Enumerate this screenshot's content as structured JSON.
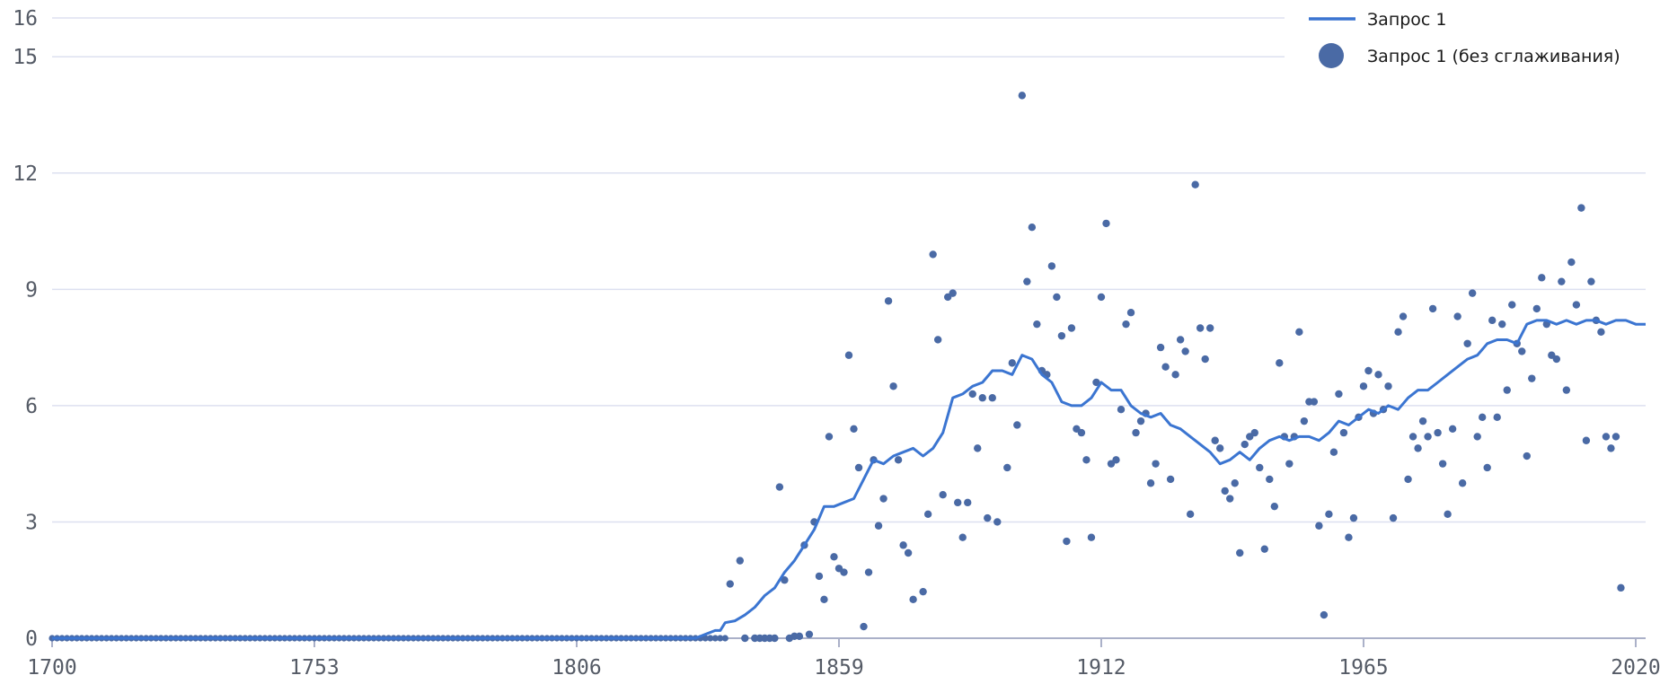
{
  "chart_data": {
    "type": "line",
    "title": "",
    "xlabel": "",
    "ylabel": "",
    "xlim": [
      1700,
      2022
    ],
    "ylim": [
      0,
      16
    ],
    "x_ticks": [
      1700,
      1753,
      1806,
      1859,
      1912,
      1965,
      2020
    ],
    "y_ticks": [
      0,
      3,
      6,
      9,
      12,
      15,
      16
    ],
    "grid": true,
    "legend_position": "top-right",
    "colors": {
      "smoothed": "#3b75d1",
      "raw": "#4a6aa5",
      "grid": "#dde0f0",
      "axis": "#aab0c8"
    },
    "series": [
      {
        "name": "Запрос 1",
        "style": "line",
        "x": [
          1700,
          1800,
          1830,
          1832,
          1834,
          1835,
          1836,
          1838,
          1840,
          1842,
          1844,
          1846,
          1848,
          1850,
          1852,
          1854,
          1856,
          1858,
          1860,
          1862,
          1864,
          1866,
          1868,
          1870,
          1872,
          1874,
          1876,
          1878,
          1880,
          1882,
          1884,
          1886,
          1888,
          1890,
          1892,
          1894,
          1896,
          1898,
          1900,
          1902,
          1904,
          1906,
          1908,
          1910,
          1912,
          1914,
          1916,
          1918,
          1920,
          1922,
          1924,
          1926,
          1928,
          1930,
          1932,
          1934,
          1936,
          1938,
          1940,
          1942,
          1944,
          1946,
          1948,
          1950,
          1952,
          1954,
          1956,
          1958,
          1960,
          1962,
          1964,
          1966,
          1968,
          1970,
          1972,
          1974,
          1976,
          1978,
          1980,
          1982,
          1984,
          1986,
          1988,
          1990,
          1992,
          1994,
          1996,
          1998,
          2000,
          2002,
          2004,
          2006,
          2008,
          2010,
          2012,
          2014,
          2016,
          2018,
          2020,
          2022
        ],
        "values": [
          0,
          0,
          0,
          0.1,
          0.2,
          0.2,
          0.4,
          0.45,
          0.6,
          0.8,
          1.1,
          1.3,
          1.7,
          2.0,
          2.4,
          2.8,
          3.4,
          3.4,
          3.5,
          3.6,
          4.1,
          4.6,
          4.5,
          4.7,
          4.8,
          4.9,
          4.7,
          4.9,
          5.3,
          6.2,
          6.3,
          6.5,
          6.6,
          6.9,
          6.9,
          6.8,
          7.3,
          7.2,
          6.8,
          6.6,
          6.1,
          6.0,
          6.0,
          6.2,
          6.6,
          6.4,
          6.4,
          6.0,
          5.8,
          5.7,
          5.8,
          5.5,
          5.4,
          5.2,
          5.0,
          4.8,
          4.5,
          4.6,
          4.8,
          4.6,
          4.9,
          5.1,
          5.2,
          5.1,
          5.2,
          5.2,
          5.1,
          5.3,
          5.6,
          5.5,
          5.7,
          5.9,
          5.8,
          6.0,
          5.9,
          6.2,
          6.4,
          6.4,
          6.6,
          6.8,
          7.0,
          7.2,
          7.3,
          7.6,
          7.7,
          7.7,
          7.6,
          8.1,
          8.2,
          8.2,
          8.1,
          8.2,
          8.1,
          8.2,
          8.2,
          8.1,
          8.2,
          8.2,
          8.1,
          8.1
        ]
      },
      {
        "name": "Запрос 1 (без сглаживания)",
        "style": "scatter",
        "points": [
          [
            1837,
            1.4
          ],
          [
            1839,
            2.0
          ],
          [
            1840,
            0
          ],
          [
            1842,
            0
          ],
          [
            1843,
            0
          ],
          [
            1844,
            0
          ],
          [
            1845,
            0
          ],
          [
            1846,
            0
          ],
          [
            1847,
            3.9
          ],
          [
            1848,
            1.5
          ],
          [
            1849,
            0
          ],
          [
            1850,
            0.05
          ],
          [
            1851,
            0.05
          ],
          [
            1852,
            2.4
          ],
          [
            1853,
            0.1
          ],
          [
            1854,
            3.0
          ],
          [
            1855,
            1.6
          ],
          [
            1856,
            1.0
          ],
          [
            1857,
            5.2
          ],
          [
            1858,
            2.1
          ],
          [
            1859,
            1.8
          ],
          [
            1860,
            1.7
          ],
          [
            1861,
            7.3
          ],
          [
            1862,
            5.4
          ],
          [
            1863,
            4.4
          ],
          [
            1864,
            0.3
          ],
          [
            1865,
            1.7
          ],
          [
            1866,
            4.6
          ],
          [
            1867,
            2.9
          ],
          [
            1868,
            3.6
          ],
          [
            1869,
            8.7
          ],
          [
            1870,
            6.5
          ],
          [
            1871,
            4.6
          ],
          [
            1872,
            2.4
          ],
          [
            1873,
            2.2
          ],
          [
            1874,
            1.0
          ],
          [
            1876,
            1.2
          ],
          [
            1877,
            3.2
          ],
          [
            1878,
            9.9
          ],
          [
            1879,
            7.7
          ],
          [
            1880,
            3.7
          ],
          [
            1881,
            8.8
          ],
          [
            1882,
            8.9
          ],
          [
            1883,
            3.5
          ],
          [
            1884,
            2.6
          ],
          [
            1885,
            3.5
          ],
          [
            1886,
            6.3
          ],
          [
            1887,
            4.9
          ],
          [
            1888,
            6.2
          ],
          [
            1889,
            3.1
          ],
          [
            1890,
            6.2
          ],
          [
            1891,
            3.0
          ],
          [
            1893,
            4.4
          ],
          [
            1894,
            7.1
          ],
          [
            1895,
            5.5
          ],
          [
            1896,
            14.0
          ],
          [
            1897,
            9.2
          ],
          [
            1898,
            10.6
          ],
          [
            1899,
            8.1
          ],
          [
            1900,
            6.9
          ],
          [
            1901,
            6.8
          ],
          [
            1902,
            9.6
          ],
          [
            1903,
            8.8
          ],
          [
            1904,
            7.8
          ],
          [
            1905,
            2.5
          ],
          [
            1906,
            8.0
          ],
          [
            1907,
            5.4
          ],
          [
            1908,
            5.3
          ],
          [
            1909,
            4.6
          ],
          [
            1910,
            2.6
          ],
          [
            1911,
            6.6
          ],
          [
            1912,
            8.8
          ],
          [
            1913,
            10.7
          ],
          [
            1914,
            4.5
          ],
          [
            1915,
            4.6
          ],
          [
            1916,
            5.9
          ],
          [
            1917,
            8.1
          ],
          [
            1918,
            8.4
          ],
          [
            1919,
            5.3
          ],
          [
            1920,
            5.6
          ],
          [
            1921,
            5.8
          ],
          [
            1922,
            4.0
          ],
          [
            1923,
            4.5
          ],
          [
            1924,
            7.5
          ],
          [
            1925,
            7.0
          ],
          [
            1926,
            4.1
          ],
          [
            1927,
            6.8
          ],
          [
            1928,
            7.7
          ],
          [
            1929,
            7.4
          ],
          [
            1930,
            3.2
          ],
          [
            1931,
            11.7
          ],
          [
            1932,
            8.0
          ],
          [
            1933,
            7.2
          ],
          [
            1934,
            8.0
          ],
          [
            1935,
            5.1
          ],
          [
            1936,
            4.9
          ],
          [
            1937,
            3.8
          ],
          [
            1938,
            3.6
          ],
          [
            1939,
            4.0
          ],
          [
            1940,
            2.2
          ],
          [
            1941,
            5.0
          ],
          [
            1942,
            5.2
          ],
          [
            1943,
            5.3
          ],
          [
            1944,
            4.4
          ],
          [
            1945,
            2.3
          ],
          [
            1946,
            4.1
          ],
          [
            1947,
            3.4
          ],
          [
            1948,
            7.1
          ],
          [
            1949,
            5.2
          ],
          [
            1950,
            4.5
          ],
          [
            1951,
            5.2
          ],
          [
            1952,
            7.9
          ],
          [
            1953,
            5.6
          ],
          [
            1954,
            6.1
          ],
          [
            1955,
            6.1
          ],
          [
            1956,
            2.9
          ],
          [
            1957,
            0.6
          ],
          [
            1958,
            3.2
          ],
          [
            1959,
            4.8
          ],
          [
            1960,
            6.3
          ],
          [
            1961,
            5.3
          ],
          [
            1962,
            2.6
          ],
          [
            1963,
            3.1
          ],
          [
            1964,
            5.7
          ],
          [
            1965,
            6.5
          ],
          [
            1966,
            6.9
          ],
          [
            1967,
            5.8
          ],
          [
            1968,
            6.8
          ],
          [
            1969,
            5.9
          ],
          [
            1970,
            6.5
          ],
          [
            1971,
            3.1
          ],
          [
            1972,
            7.9
          ],
          [
            1973,
            8.3
          ],
          [
            1974,
            4.1
          ],
          [
            1975,
            5.2
          ],
          [
            1976,
            4.9
          ],
          [
            1977,
            5.6
          ],
          [
            1978,
            5.2
          ],
          [
            1979,
            8.5
          ],
          [
            1980,
            5.3
          ],
          [
            1981,
            4.5
          ],
          [
            1982,
            3.2
          ],
          [
            1983,
            5.4
          ],
          [
            1984,
            8.3
          ],
          [
            1985,
            4.0
          ],
          [
            1986,
            7.6
          ],
          [
            1987,
            8.9
          ],
          [
            1988,
            5.2
          ],
          [
            1989,
            5.7
          ],
          [
            1990,
            4.4
          ],
          [
            1991,
            8.2
          ],
          [
            1992,
            5.7
          ],
          [
            1993,
            8.1
          ],
          [
            1994,
            6.4
          ],
          [
            1995,
            8.6
          ],
          [
            1996,
            7.6
          ],
          [
            1997,
            7.4
          ],
          [
            1998,
            4.7
          ],
          [
            1999,
            6.7
          ],
          [
            2000,
            8.5
          ],
          [
            2001,
            9.3
          ],
          [
            2002,
            8.1
          ],
          [
            2003,
            7.3
          ],
          [
            2004,
            7.2
          ],
          [
            2005,
            9.2
          ],
          [
            2006,
            6.4
          ],
          [
            2007,
            9.7
          ],
          [
            2008,
            8.6
          ],
          [
            2009,
            11.1
          ],
          [
            2010,
            5.1
          ],
          [
            2011,
            9.2
          ],
          [
            2012,
            8.2
          ],
          [
            2013,
            7.9
          ],
          [
            2014,
            5.2
          ],
          [
            2015,
            4.9
          ],
          [
            2016,
            5.2
          ],
          [
            2017,
            1.3
          ]
        ]
      }
    ]
  }
}
